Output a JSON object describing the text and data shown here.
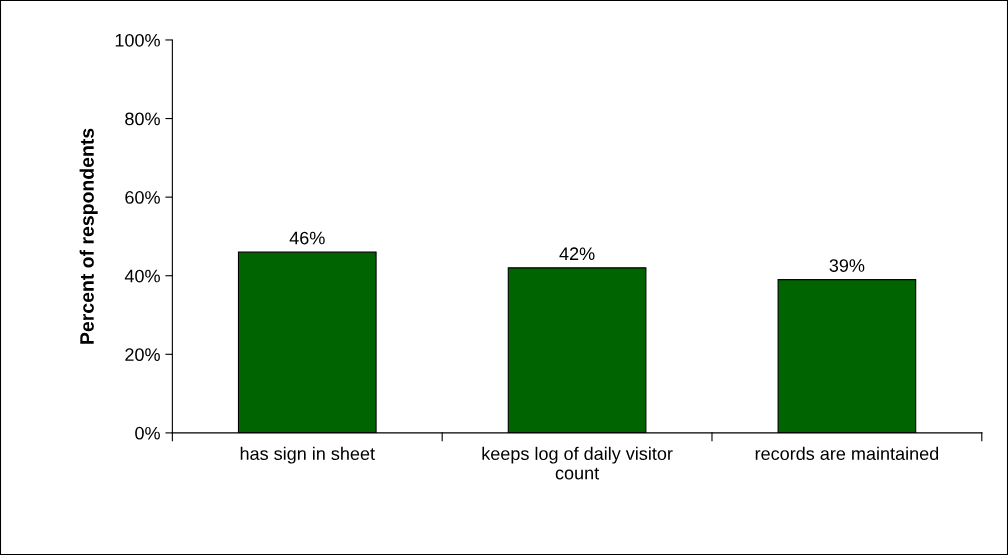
{
  "chart_data": {
    "type": "bar",
    "ylabel": "Percent of respondents",
    "categories": [
      "has sign in sheet",
      "keeps log of daily visitor count",
      "records are maintained"
    ],
    "values": [
      46,
      42,
      39
    ],
    "value_labels": [
      "46%",
      "42%",
      "39%"
    ],
    "color": "#006400",
    "ylim": [
      0,
      100
    ],
    "yticks": [
      {
        "value": 0,
        "label": "0%"
      },
      {
        "value": 20,
        "label": "20%"
      },
      {
        "value": 40,
        "label": "40%"
      },
      {
        "value": 60,
        "label": "60%"
      },
      {
        "value": 80,
        "label": "80%"
      },
      {
        "value": 100,
        "label": "100%"
      }
    ],
    "grid": false,
    "legend": false
  }
}
